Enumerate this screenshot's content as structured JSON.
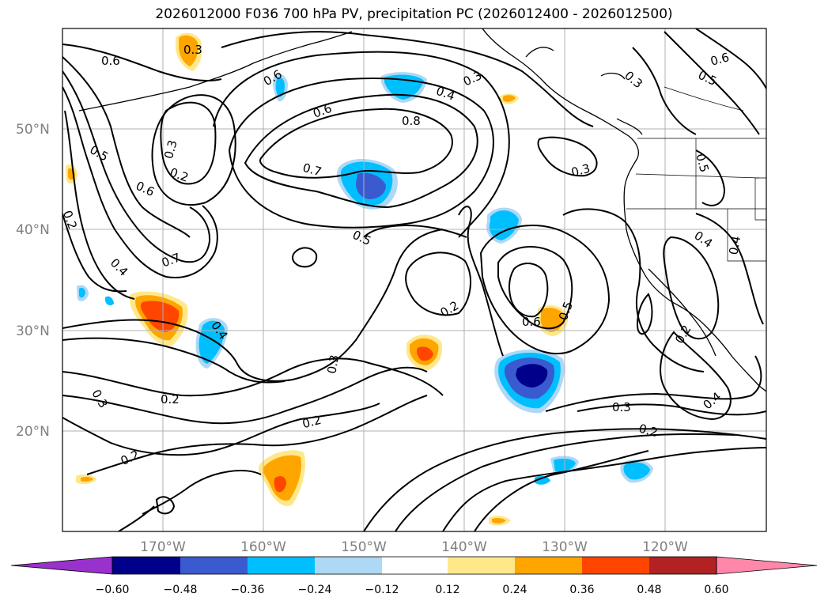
{
  "title": "2026012000 F036 700 hPa PV, precipitation PC (2026012400 - 2026012500)",
  "lat_labels": [
    "50°N",
    "40°N",
    "30°N",
    "20°N"
  ],
  "lon_labels": [
    "170°W",
    "160°W",
    "150°W",
    "140°W",
    "130°W",
    "120°W"
  ],
  "colorbar": {
    "ticks": [
      "−0.60",
      "−0.48",
      "−0.36",
      "−0.24",
      "−0.12",
      "0.12",
      "0.24",
      "0.36",
      "0.48",
      "0.60"
    ],
    "colors": [
      "#9932cc",
      "#00008b",
      "#3a5bd0",
      "#00bfff",
      "#add8f6",
      "#ffffff",
      "#ffe88a",
      "#ffa500",
      "#ff4500",
      "#b22222",
      "#ff88aa"
    ]
  },
  "contour_labels": [
    "0.6",
    "0.3",
    "0.6",
    "0.4",
    "0.3",
    "0.6",
    "0.8",
    "0.6",
    "0.5",
    "0.3",
    "0.2",
    "0.5",
    "0.7",
    "0.3",
    "0.6",
    "0.2",
    "0.7",
    "0.5",
    "0.4",
    "0.4",
    "0.5",
    "0.4",
    "0.4",
    "0.2",
    "0.6",
    "0.5",
    "0.3",
    "0.2",
    "0.2",
    "0.3",
    "0.2",
    "0.3",
    "0.2",
    "0.4",
    "0.2"
  ],
  "precip_colors": {
    "light_blue": "#add8f6",
    "blue": "#00bfff",
    "mid_blue": "#3a5bd0",
    "dark_blue": "#00008b",
    "light_yellow": "#ffe88a",
    "orange": "#ffa500",
    "red_orange": "#ff4500"
  }
}
